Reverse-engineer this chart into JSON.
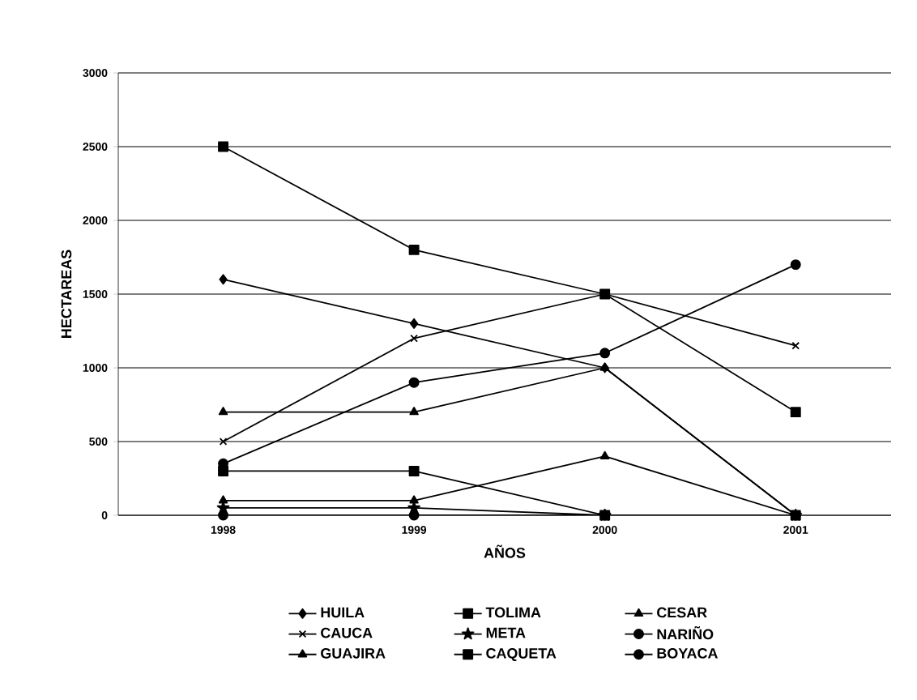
{
  "chart_data": {
    "type": "line",
    "xlabel": "AÑOS",
    "ylabel": "HECTAREAS",
    "categories": [
      "1998",
      "1999",
      "2000",
      "2001"
    ],
    "series": [
      {
        "name": "HUILA",
        "color": "#000000",
        "marker": "diamond",
        "values": [
          1600,
          1300,
          1000,
          0
        ]
      },
      {
        "name": "TOLIMA",
        "color": "#000000",
        "marker": "square",
        "values": [
          2500,
          1800,
          1500,
          700
        ]
      },
      {
        "name": "CESAR",
        "color": "#000000",
        "marker": "triangle",
        "values": [
          700,
          700,
          1000,
          0
        ]
      },
      {
        "name": "CAUCA",
        "color": "#000000",
        "marker": "cross",
        "values": [
          500,
          1200,
          1500,
          1150
        ]
      },
      {
        "name": "META",
        "color": "#000000",
        "marker": "star",
        "values": [
          50,
          50,
          0,
          0
        ]
      },
      {
        "name": "NARIÑO",
        "color": "#000000",
        "marker": "circle",
        "values": [
          350,
          900,
          1100,
          1700
        ]
      },
      {
        "name": "GUAJIRA",
        "color": "#000000",
        "marker": "triangle",
        "values": [
          100,
          100,
          400,
          0
        ]
      },
      {
        "name": "CAQUETA",
        "color": "#000000",
        "marker": "square",
        "values": [
          300,
          300,
          0,
          0
        ]
      },
      {
        "name": "BOYACA",
        "color": "#000000",
        "marker": "circle",
        "values": [
          0,
          0,
          0,
          0
        ]
      }
    ],
    "ylim": [
      0,
      3000
    ],
    "yticks": [
      0,
      500,
      1000,
      1500,
      2000,
      2500,
      3000
    ],
    "grid": "y",
    "legend": "bottom",
    "line_style": "solid"
  }
}
